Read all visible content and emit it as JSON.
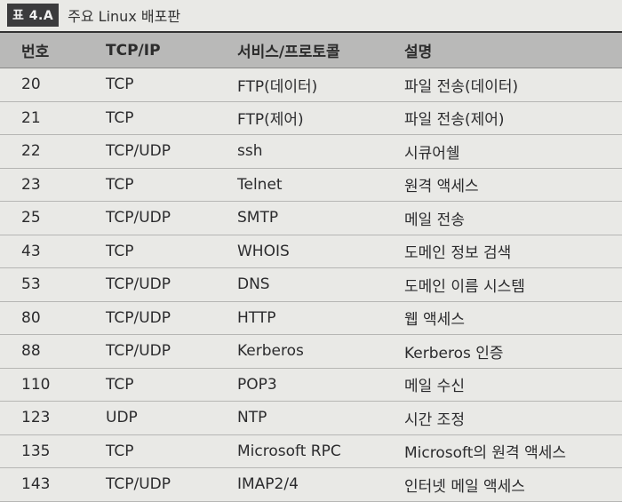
{
  "caption": {
    "tag": "표 4.A",
    "title": "주요 Linux 배포판"
  },
  "table": {
    "headers": [
      "번호",
      "TCP/IP",
      "서비스/프로토콜",
      "설명"
    ],
    "rows": [
      [
        "20",
        "TCP",
        "FTP(데이터)",
        "파일 전송(데이터)"
      ],
      [
        "21",
        "TCP",
        "FTP(제어)",
        "파일 전송(제어)"
      ],
      [
        "22",
        "TCP/UDP",
        "ssh",
        "시큐어쉘"
      ],
      [
        "23",
        "TCP",
        "Telnet",
        "원격 액세스"
      ],
      [
        "25",
        "TCP/UDP",
        "SMTP",
        "메일 전송"
      ],
      [
        "43",
        "TCP",
        "WHOIS",
        "도메인 정보 검색"
      ],
      [
        "53",
        "TCP/UDP",
        "DNS",
        "도메인 이름 시스템"
      ],
      [
        "80",
        "TCP/UDP",
        "HTTP",
        "웹 액세스"
      ],
      [
        "88",
        "TCP/UDP",
        "Kerberos",
        "Kerberos 인증"
      ],
      [
        "110",
        "TCP",
        "POP3",
        "메일 수신"
      ],
      [
        "123",
        "UDP",
        "NTP",
        "시간 조정"
      ],
      [
        "135",
        "TCP",
        "Microsoft RPC",
        "Microsoft의 원격 액세스"
      ],
      [
        "143",
        "TCP/UDP",
        "IMAP2/4",
        "인터넷 메일 액세스"
      ]
    ]
  }
}
